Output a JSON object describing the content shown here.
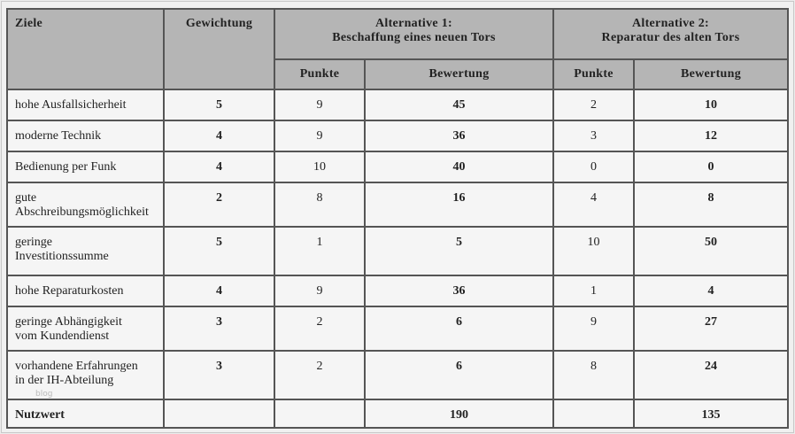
{
  "headers": {
    "ziele": "Ziele",
    "gewichtung": "Gewichtung",
    "alt1_line1": "Alternative 1:",
    "alt1_line2": "Beschaffung eines neuen Tors",
    "alt2_line1": "Alternative 2:",
    "alt2_line2": "Reparatur des alten Tors",
    "punkte": "Punkte",
    "bewertung": "Bewertung"
  },
  "rows": [
    {
      "ziel": [
        "hohe Ausfallsicherheit"
      ],
      "gewichtung": "5",
      "a1_punkte": "9",
      "a1_bewertung": "45",
      "a2_punkte": "2",
      "a2_bewertung": "10"
    },
    {
      "ziel": [
        "moderne Technik"
      ],
      "gewichtung": "4",
      "a1_punkte": "9",
      "a1_bewertung": "36",
      "a2_punkte": "3",
      "a2_bewertung": "12"
    },
    {
      "ziel": [
        "Bedienung per Funk"
      ],
      "gewichtung": "4",
      "a1_punkte": "10",
      "a1_bewertung": "40",
      "a2_punkte": "0",
      "a2_bewertung": "0"
    },
    {
      "ziel": [
        "gute",
        "Abschreibungsmöglichkeit"
      ],
      "gewichtung": "2",
      "a1_punkte": "8",
      "a1_bewertung": "16",
      "a2_punkte": "4",
      "a2_bewertung": "8"
    },
    {
      "ziel": [
        "geringe",
        "Investitionssumme"
      ],
      "gewichtung": "5",
      "a1_punkte": "1",
      "a1_bewertung": "5",
      "a2_punkte": "10",
      "a2_bewertung": "50"
    },
    {
      "ziel": [
        "hohe Reparaturkosten"
      ],
      "gewichtung": "4",
      "a1_punkte": "9",
      "a1_bewertung": "36",
      "a2_punkte": "1",
      "a2_bewertung": "4"
    },
    {
      "ziel": [
        "geringe Abhängigkeit",
        "vom Kundendienst"
      ],
      "gewichtung": "3",
      "a1_punkte": "2",
      "a1_bewertung": "6",
      "a2_punkte": "9",
      "a2_bewertung": "27"
    },
    {
      "ziel": [
        "vorhandene Erfahrungen",
        "in der IH-Abteilung"
      ],
      "gewichtung": "3",
      "a1_punkte": "2",
      "a1_bewertung": "6",
      "a2_punkte": "8",
      "a2_bewertung": "24"
    }
  ],
  "total": {
    "label": "Nutzwert",
    "a1": "190",
    "a2": "135"
  },
  "watermark": "blog"
}
